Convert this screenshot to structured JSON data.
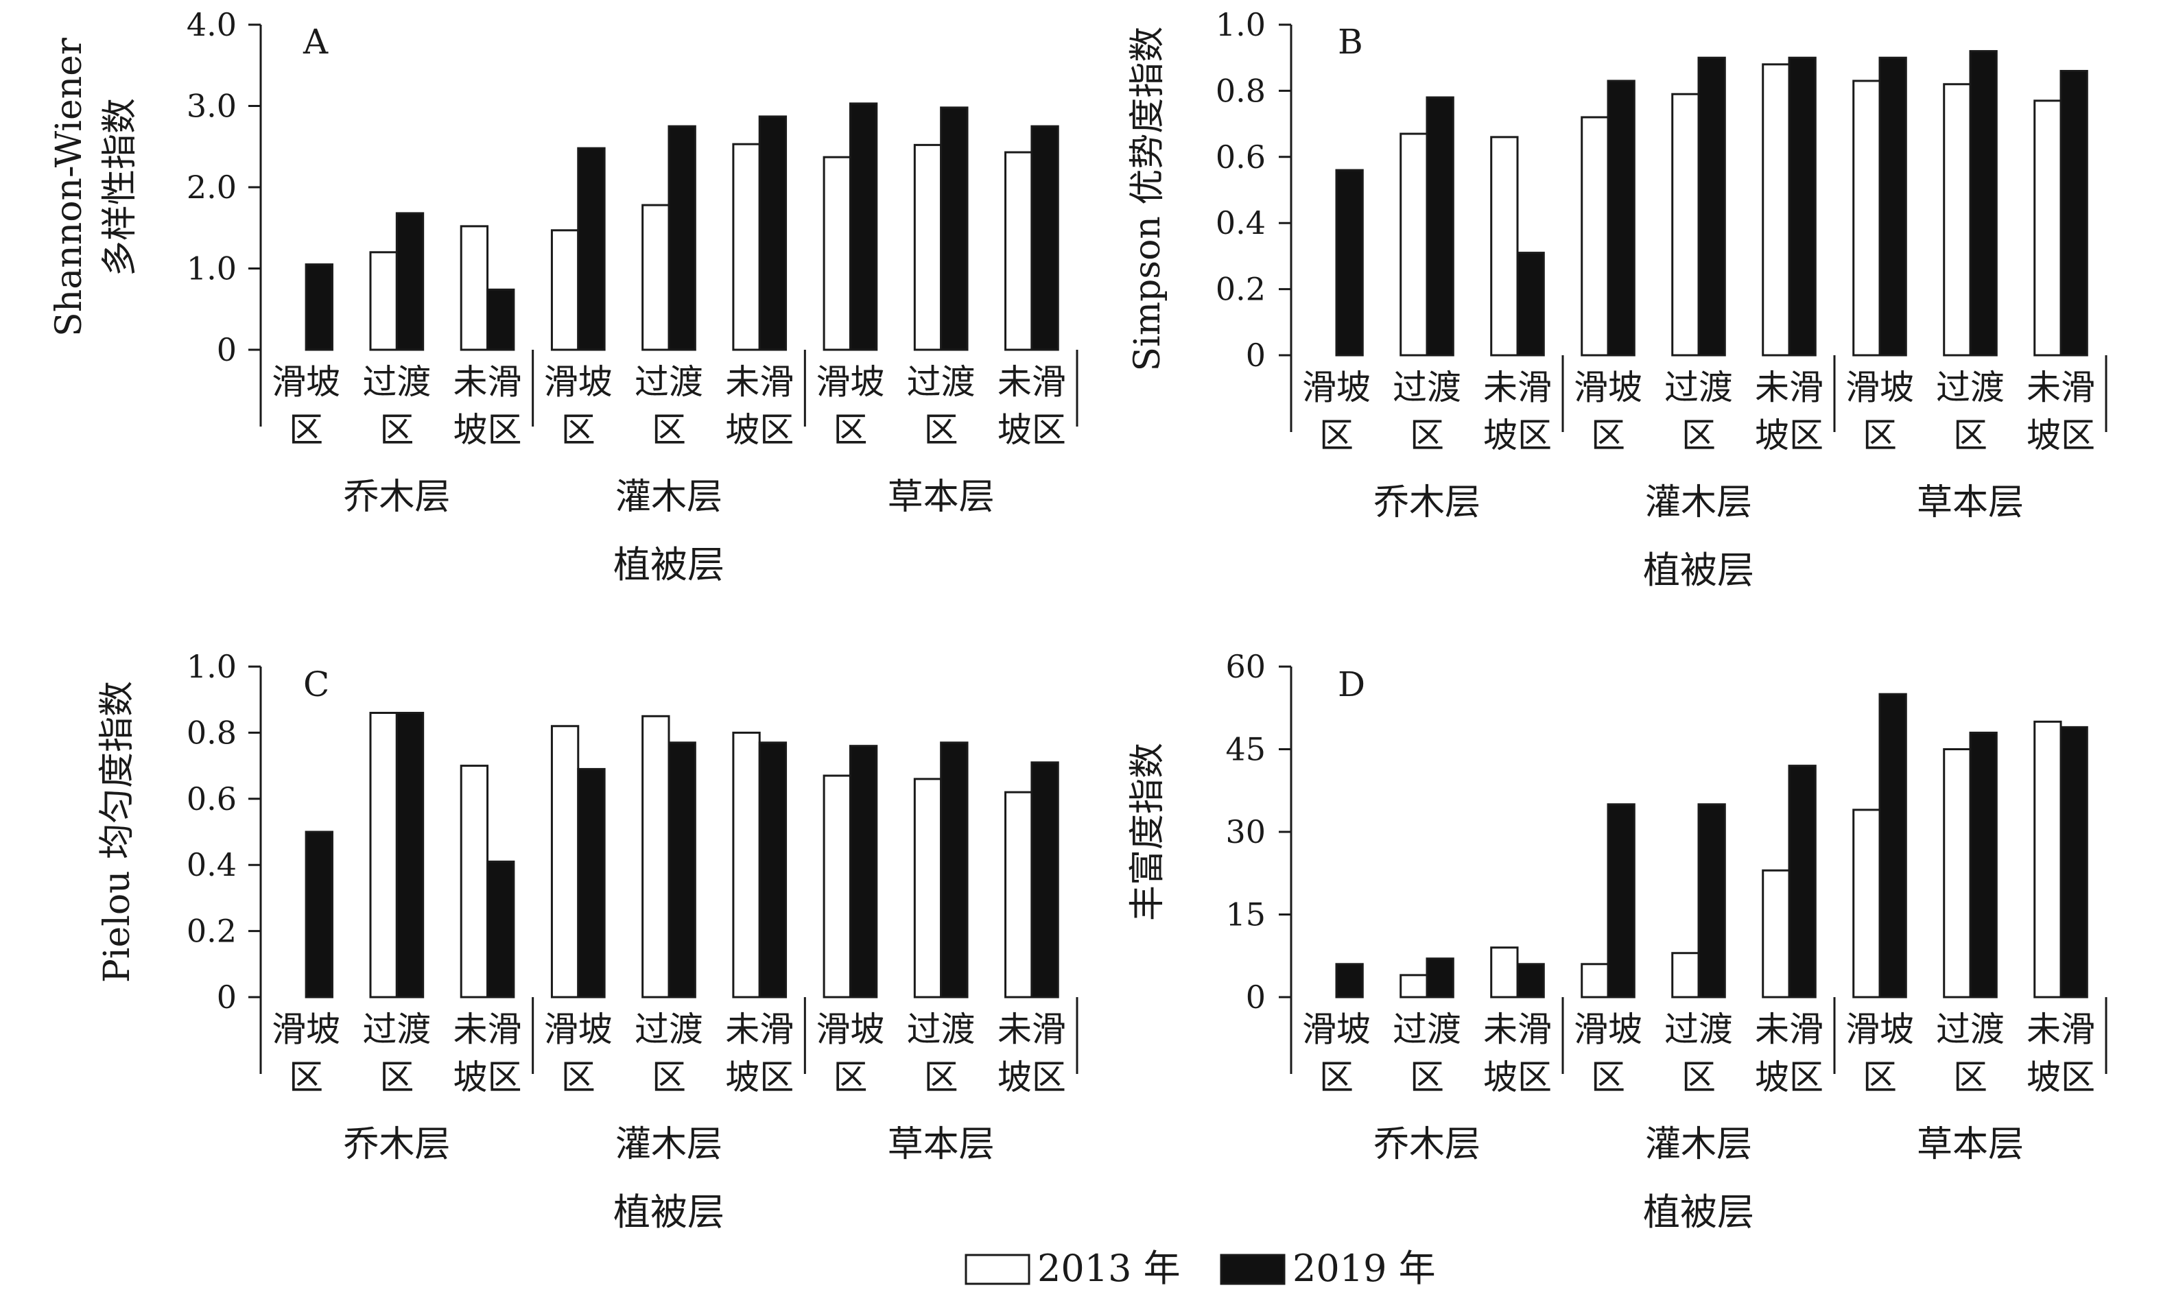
{
  "colors": {
    "series_2013": "#ffffff",
    "series_2019": "#111111",
    "axis": "#1a1a1a"
  },
  "legend": {
    "items": [
      "2013 年",
      "2019 年"
    ]
  },
  "chart_data": [
    {
      "type": "bar",
      "panel": "A",
      "ylabel": [
        "Shannon-Wiener",
        "多样性指数"
      ],
      "xlabel": "植被层",
      "ylim": [
        0,
        4
      ],
      "yticks": [
        "0",
        "1.0",
        "2.0",
        "3.0",
        "4.0"
      ],
      "groups": [
        "乔木层",
        "灌木层",
        "草本层"
      ],
      "categories": [
        [
          "滑坡",
          "区"
        ],
        [
          "过渡",
          "区"
        ],
        [
          "未滑",
          "坡区"
        ],
        [
          "滑坡",
          "区"
        ],
        [
          "过渡",
          "区"
        ],
        [
          "未滑",
          "坡区"
        ],
        [
          "滑坡",
          "区"
        ],
        [
          "过渡",
          "区"
        ],
        [
          "未滑",
          "坡区"
        ]
      ],
      "series": [
        {
          "name": "2013 年",
          "values": [
            0,
            1.2,
            1.52,
            1.47,
            1.78,
            2.53,
            2.37,
            2.52,
            2.43
          ]
        },
        {
          "name": "2019 年",
          "values": [
            1.05,
            1.68,
            0.74,
            2.48,
            2.75,
            2.87,
            3.03,
            2.98,
            2.75
          ]
        }
      ]
    },
    {
      "type": "bar",
      "panel": "B",
      "ylabel": [
        "Simpson 优势度指数"
      ],
      "xlabel": "植被层",
      "ylim": [
        0,
        1
      ],
      "yticks": [
        "0",
        "0.2",
        "0.4",
        "0.6",
        "0.8",
        "1.0"
      ],
      "groups": [
        "乔木层",
        "灌木层",
        "草本层"
      ],
      "categories": [
        [
          "滑坡",
          "区"
        ],
        [
          "过渡",
          "区"
        ],
        [
          "未滑",
          "坡区"
        ],
        [
          "滑坡",
          "区"
        ],
        [
          "过渡",
          "区"
        ],
        [
          "未滑",
          "坡区"
        ],
        [
          "滑坡",
          "区"
        ],
        [
          "过渡",
          "区"
        ],
        [
          "未滑",
          "坡区"
        ]
      ],
      "series": [
        {
          "name": "2013 年",
          "values": [
            0,
            0.67,
            0.66,
            0.72,
            0.79,
            0.88,
            0.83,
            0.82,
            0.77
          ]
        },
        {
          "name": "2019 年",
          "values": [
            0.56,
            0.78,
            0.31,
            0.83,
            0.9,
            0.9,
            0.9,
            0.92,
            0.86
          ]
        }
      ]
    },
    {
      "type": "bar",
      "panel": "C",
      "ylabel": [
        "Pielou 均匀度指数"
      ],
      "xlabel": "植被层",
      "ylim": [
        0,
        1
      ],
      "yticks": [
        "0",
        "0.2",
        "0.4",
        "0.6",
        "0.8",
        "1.0"
      ],
      "groups": [
        "乔木层",
        "灌木层",
        "草本层"
      ],
      "categories": [
        [
          "滑坡",
          "区"
        ],
        [
          "过渡",
          "区"
        ],
        [
          "未滑",
          "坡区"
        ],
        [
          "滑坡",
          "区"
        ],
        [
          "过渡",
          "区"
        ],
        [
          "未滑",
          "坡区"
        ],
        [
          "滑坡",
          "区"
        ],
        [
          "过渡",
          "区"
        ],
        [
          "未滑",
          "坡区"
        ]
      ],
      "series": [
        {
          "name": "2013 年",
          "values": [
            0,
            0.86,
            0.7,
            0.82,
            0.85,
            0.8,
            0.67,
            0.66,
            0.62
          ]
        },
        {
          "name": "2019 年",
          "values": [
            0.5,
            0.86,
            0.41,
            0.69,
            0.77,
            0.77,
            0.76,
            0.77,
            0.71
          ]
        }
      ]
    },
    {
      "type": "bar",
      "panel": "D",
      "ylabel": [
        "丰富度指数"
      ],
      "xlabel": "植被层",
      "ylim": [
        0,
        60
      ],
      "yticks": [
        "0",
        "15",
        "30",
        "45",
        "60"
      ],
      "groups": [
        "乔木层",
        "灌木层",
        "草本层"
      ],
      "categories": [
        [
          "滑坡",
          "区"
        ],
        [
          "过渡",
          "区"
        ],
        [
          "未滑",
          "坡区"
        ],
        [
          "滑坡",
          "区"
        ],
        [
          "过渡",
          "区"
        ],
        [
          "未滑",
          "坡区"
        ],
        [
          "滑坡",
          "区"
        ],
        [
          "过渡",
          "区"
        ],
        [
          "未滑",
          "坡区"
        ]
      ],
      "series": [
        {
          "name": "2013 年",
          "values": [
            0,
            4,
            9,
            6,
            8,
            23,
            34,
            45,
            50
          ]
        },
        {
          "name": "2019 年",
          "values": [
            6,
            7,
            6,
            35,
            35,
            42,
            55,
            48,
            49
          ]
        }
      ]
    }
  ]
}
